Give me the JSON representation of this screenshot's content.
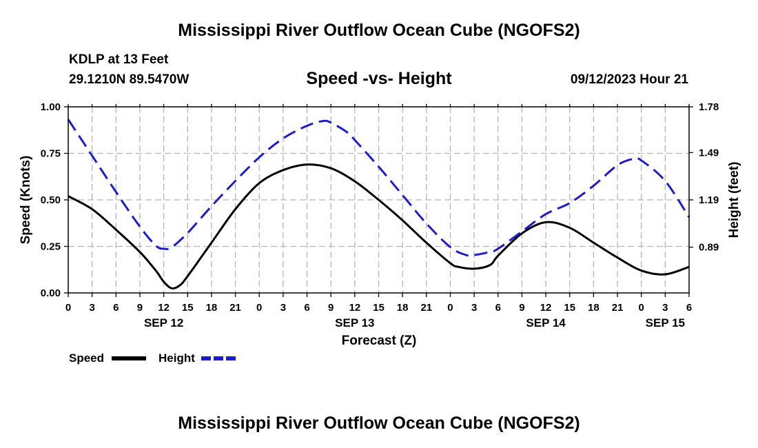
{
  "header": {
    "title": "Mississippi River Outflow Ocean Cube (NGOFS2)",
    "station": "KDLP at 13 Feet",
    "coordinates": "29.1210N  89.5470W",
    "subtitle": "Speed -vs- Height",
    "run_time": "09/12/2023 Hour 21"
  },
  "footer": {
    "title": "Mississippi River Outflow Ocean Cube (NGOFS2)"
  },
  "chart_data": {
    "type": "line",
    "title": "Speed -vs- Height",
    "xlabel": "Forecast (Z)",
    "ylabel": "Speed (Knots)",
    "y2label": "Height (feet)",
    "x_unit": "hours from 00Z SEP 12",
    "xlim": [
      0,
      78
    ],
    "ylim": [
      0,
      1.0
    ],
    "y2lim": [
      0.6,
      1.78
    ],
    "grid": true,
    "x_ticks": [
      0,
      3,
      6,
      9,
      12,
      15,
      18,
      21,
      24,
      27,
      30,
      33,
      36,
      39,
      42,
      45,
      48,
      51,
      54,
      57,
      60,
      63,
      66,
      69,
      72,
      75,
      78
    ],
    "x_tick_labels": [
      "0",
      "3",
      "6",
      "9",
      "12",
      "15",
      "18",
      "21",
      "0",
      "3",
      "6",
      "9",
      "12",
      "15",
      "18",
      "21",
      "0",
      "3",
      "6",
      "9",
      "12",
      "15",
      "18",
      "21",
      "0",
      "3",
      "6"
    ],
    "date_labels": [
      {
        "x": 12,
        "label": "SEP 12"
      },
      {
        "x": 36,
        "label": "SEP 13"
      },
      {
        "x": 60,
        "label": "SEP 14"
      },
      {
        "x": 75,
        "label": "SEP 15"
      }
    ],
    "y_ticks": [
      0.0,
      0.25,
      0.5,
      0.75,
      1.0
    ],
    "y_tick_labels": [
      "0.00",
      "0.25",
      "0.50",
      "0.75",
      "1.00"
    ],
    "y2_ticks": [
      0.89,
      1.19,
      1.49,
      1.78
    ],
    "y2_tick_labels": [
      "0.89",
      "1.19",
      "1.49",
      "1.78"
    ],
    "legend": [
      {
        "name": "Speed",
        "color": "#000000",
        "dash": "solid"
      },
      {
        "name": "Height",
        "color": "#1c1ccc",
        "dash": "dashed"
      }
    ],
    "series": [
      {
        "name": "Speed",
        "axis": "left",
        "color": "#000000",
        "dash": "solid",
        "units": "knots",
        "x": [
          0,
          3,
          6,
          9,
          11,
          12,
          13,
          14,
          15,
          18,
          21,
          24,
          27,
          30,
          33,
          36,
          39,
          42,
          45,
          48,
          49,
          51,
          53,
          54,
          57,
          60,
          63,
          66,
          69,
          72,
          75,
          78
        ],
        "values": [
          0.52,
          0.45,
          0.34,
          0.22,
          0.12,
          0.06,
          0.025,
          0.04,
          0.09,
          0.27,
          0.45,
          0.59,
          0.66,
          0.69,
          0.67,
          0.6,
          0.5,
          0.39,
          0.27,
          0.16,
          0.14,
          0.13,
          0.15,
          0.2,
          0.32,
          0.38,
          0.35,
          0.27,
          0.19,
          0.12,
          0.1,
          0.14
        ]
      },
      {
        "name": "Height",
        "axis": "right",
        "color": "#1c1ccc",
        "dash": "dashed",
        "units": "feet",
        "x": [
          0,
          3,
          6,
          9,
          11,
          12,
          13,
          15,
          18,
          21,
          24,
          27,
          30,
          32,
          33,
          35,
          36,
          39,
          42,
          45,
          48,
          50,
          51,
          53,
          54,
          57,
          60,
          63,
          66,
          69,
          71,
          72,
          75,
          78
        ],
        "values": [
          1.7,
          1.47,
          1.24,
          1.02,
          0.9,
          0.88,
          0.89,
          0.98,
          1.15,
          1.31,
          1.46,
          1.58,
          1.66,
          1.69,
          1.68,
          1.62,
          1.57,
          1.4,
          1.22,
          1.04,
          0.89,
          0.84,
          0.84,
          0.86,
          0.88,
          0.99,
          1.1,
          1.17,
          1.28,
          1.41,
          1.45,
          1.44,
          1.31,
          1.08
        ]
      }
    ]
  }
}
